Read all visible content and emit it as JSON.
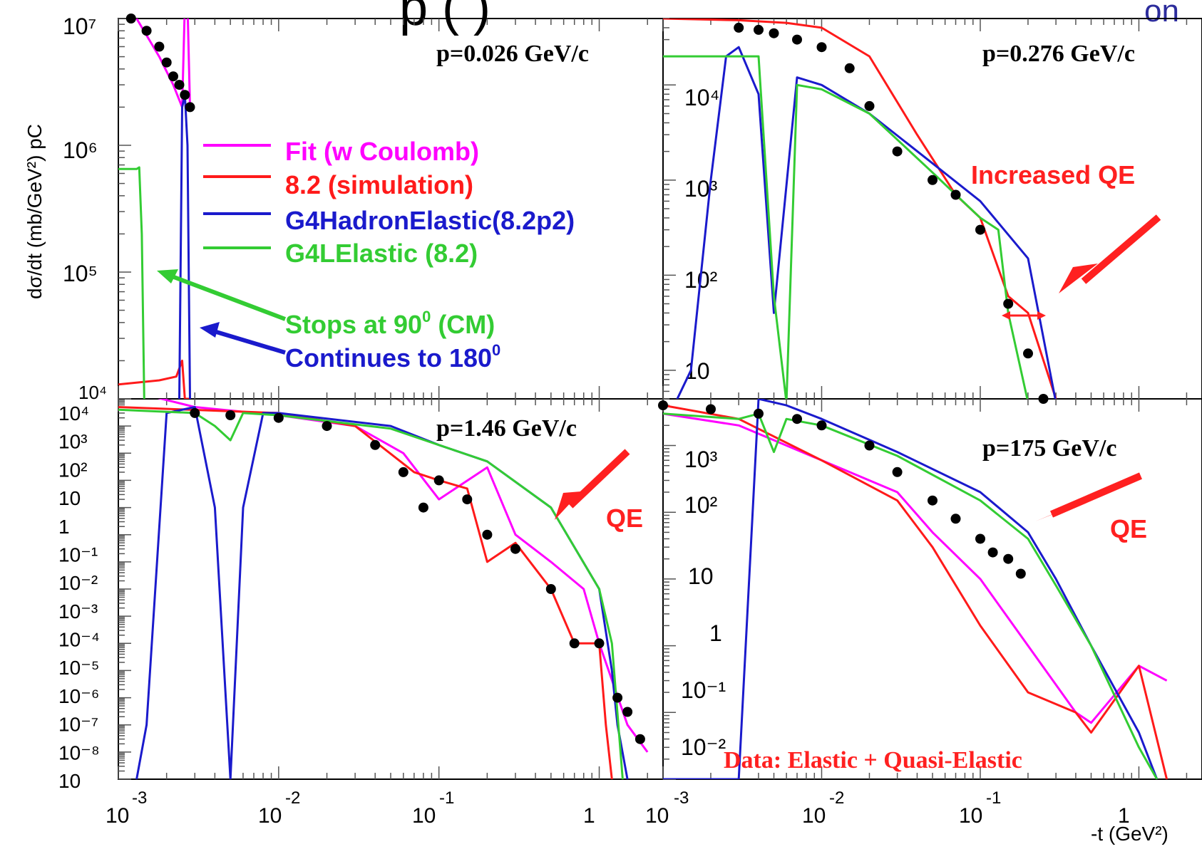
{
  "header": {
    "top_title_fragment": "p  (  )",
    "top_right_fragment": "on"
  },
  "colors": {
    "fit": "#ff00ff",
    "sim": "#ff1a1a",
    "hadron": "#1a1acc",
    "lelastic": "#33cc33",
    "annotation_red": "#ff2020",
    "data": "#000000"
  },
  "ylabel": "dσ/dt (mb/GeV²) pC",
  "xlabel": "-t (GeV²)",
  "legend": {
    "items": [
      {
        "label": "Fit (w Coulomb)",
        "color": "#ff00ff"
      },
      {
        "label": "8.2 (simulation)",
        "color": "#ff1a1a"
      },
      {
        "label": "G4HadronElastic(8.2p2)",
        "color": "#1a1acc"
      },
      {
        "label": "G4LElastic (8.2)",
        "color": "#33cc33"
      }
    ]
  },
  "annotations": {
    "stops": "Stops at 90",
    "stops_suffix": " (CM)",
    "continues": "Continues to 180",
    "degree": "0",
    "increased_qe": "Increased QE",
    "qe": "QE",
    "data_note": "Data: Elastic + Quasi-Elastic"
  },
  "chart_data": [
    {
      "type": "line",
      "panel": "top-left",
      "title": "p=0.026 GeV/c",
      "y_tick_labels": [
        "10⁷",
        "10⁶",
        "10⁵",
        "10⁴"
      ],
      "x_scale": "log",
      "y_scale": "log",
      "series": [
        {
          "name": "Fit (w Coulomb)",
          "x": [
            0.0013,
            0.0018,
            0.0022,
            0.0025,
            0.0026,
            0.0027,
            0.0028
          ],
          "y": [
            10000000.0,
            5000000.0,
            3000000.0,
            2000000.0,
            100000000.0,
            100000000.0,
            2000000.0
          ]
        },
        {
          "name": "8.2 (simulation)",
          "x": [
            0.001,
            0.0018,
            0.0023,
            0.0025,
            0.0026,
            0.0028
          ],
          "y": [
            13000,
            14000,
            15000,
            20000,
            10000,
            10000
          ]
        },
        {
          "name": "G4HadronElastic(8.2p2)",
          "x": [
            0.0024,
            0.0025,
            0.0026,
            0.0027,
            0.0028
          ],
          "y": [
            10000,
            2000000,
            2500000,
            1000000,
            10000
          ]
        },
        {
          "name": "G4LElastic (8.2)",
          "x": [
            0.001,
            0.0013,
            0.00135,
            0.0014,
            0.00145
          ],
          "y": [
            650000,
            650000,
            670000,
            200000,
            10000
          ]
        }
      ],
      "data_points": {
        "x": [
          0.0012,
          0.0015,
          0.0018,
          0.002,
          0.0022,
          0.0024,
          0.0026,
          0.0028
        ],
        "y": [
          10000000,
          8000000,
          6000000,
          4500000,
          3500000,
          3000000,
          2500000,
          2000000
        ]
      }
    },
    {
      "type": "line",
      "panel": "top-right",
      "title": "p=0.276 GeV/c",
      "y_tick_labels": [
        "10⁴",
        "10³",
        "10²",
        "10"
      ],
      "x_scale": "log",
      "y_scale": "log",
      "series": [
        {
          "name": "8.2 (simulation)",
          "x": [
            0.001,
            0.003,
            0.006,
            0.01,
            0.02,
            0.04,
            0.07,
            0.1,
            0.15,
            0.2,
            0.3
          ],
          "y": [
            50000,
            48000,
            45000,
            40000,
            20000,
            3000,
            700,
            400,
            60,
            40,
            5
          ]
        },
        {
          "name": "G4HadronElastic(8.2p2)",
          "x": [
            0.0012,
            0.0015,
            0.002,
            0.0025,
            0.003,
            0.004,
            0.005,
            0.007,
            0.01,
            0.02,
            0.05,
            0.1,
            0.2,
            0.3
          ],
          "y": [
            1,
            10,
            1000,
            20000,
            25000,
            8000,
            40,
            12000,
            10000,
            5000,
            1500,
            600,
            150,
            1
          ]
        },
        {
          "name": "G4LElastic (8.2)",
          "x": [
            0.001,
            0.003,
            0.004,
            0.005,
            0.006,
            0.007,
            0.01,
            0.02,
            0.05,
            0.1,
            0.13,
            0.15,
            0.2,
            0.25
          ],
          "y": [
            20000,
            20000,
            20000,
            60,
            1,
            10000,
            9000,
            5000,
            1200,
            400,
            300,
            40,
            1,
            1
          ]
        }
      ],
      "data_points": {
        "x": [
          0.003,
          0.004,
          0.005,
          0.007,
          0.01,
          0.015,
          0.02,
          0.03,
          0.05,
          0.07,
          0.1,
          0.15,
          0.2,
          0.25
        ],
        "y": [
          40000,
          38000,
          35000,
          30000,
          25000,
          15000,
          6000,
          2000,
          1000,
          700,
          300,
          50,
          15,
          5
        ]
      }
    },
    {
      "type": "line",
      "panel": "bottom-left",
      "title": "p=1.46 GeV/c",
      "y_tick_labels": [
        "10⁴",
        "10³",
        "10²",
        "10",
        "1",
        "10⁻¹",
        "10⁻²",
        "10⁻³",
        "10⁻⁴",
        "10⁻⁵",
        "10⁻⁶",
        "10⁻⁷",
        "10⁻⁸",
        "10"
      ],
      "x_scale": "log",
      "y_scale": "log",
      "series": [
        {
          "name": "Fit (w Coulomb)",
          "x": [
            0.001,
            0.003,
            0.01,
            0.03,
            0.06,
            0.1,
            0.2,
            0.3,
            0.5,
            0.8,
            1.0,
            1.5,
            2.0
          ],
          "y": [
            25000,
            5000,
            2500,
            1000,
            100,
            2,
            30,
            0.1,
            0.01,
            0.001,
            1e-05,
            1e-08,
            1e-09
          ]
        },
        {
          "name": "8.2 (simulation)",
          "x": [
            0.001,
            0.01,
            0.03,
            0.07,
            0.1,
            0.15,
            0.2,
            0.3,
            0.5,
            0.7,
            1.0,
            1.1,
            1.2
          ],
          "y": [
            5000,
            3000,
            1000,
            20,
            10,
            5,
            0.01,
            0.05,
            0.001,
            1e-05,
            1e-05,
            1e-08,
            1e-10
          ]
        },
        {
          "name": "G4HadronElastic(8.2p2)",
          "x": [
            0.0013,
            0.0015,
            0.002,
            0.003,
            0.004,
            0.005,
            0.006,
            0.008,
            0.01,
            0.05,
            0.1,
            0.2,
            0.5,
            1.0,
            1.2,
            1.3,
            1.5
          ],
          "y": [
            1e-10,
            1e-08,
            3000,
            5000,
            1,
            1e-10,
            1,
            3000,
            3000,
            1000,
            200,
            50,
            1,
            0.001,
            1e-06,
            1e-08,
            1e-10
          ]
        },
        {
          "name": "G4LElastic (8.2)",
          "x": [
            0.001,
            0.003,
            0.004,
            0.005,
            0.006,
            0.01,
            0.05,
            0.1,
            0.2,
            0.5,
            1.0,
            1.2,
            1.4
          ],
          "y": [
            4000,
            3000,
            1000,
            300,
            3000,
            2500,
            800,
            200,
            50,
            1,
            0.001,
            1e-05,
            1e-10
          ]
        }
      ],
      "data_points": {
        "x": [
          0.003,
          0.005,
          0.01,
          0.02,
          0.04,
          0.06,
          0.08,
          0.1,
          0.15,
          0.2,
          0.3,
          0.5,
          0.7,
          1.0,
          1.3,
          1.5,
          1.8
        ],
        "y": [
          3000,
          2500,
          2000,
          1000,
          200,
          20,
          1,
          10,
          2,
          0.1,
          0.03,
          0.001,
          1e-05,
          1e-05,
          1e-07,
          3e-08,
          3e-09
        ]
      }
    },
    {
      "type": "line",
      "panel": "bottom-right",
      "title": "p=175 GeV/c",
      "y_tick_labels": [
        "10³",
        "10²",
        "10",
        "1",
        "10⁻¹",
        "10⁻²"
      ],
      "x_scale": "log",
      "y_scale": "log",
      "series": [
        {
          "name": "Fit (w Coulomb)",
          "x": [
            0.001,
            0.003,
            0.01,
            0.03,
            0.05,
            0.1,
            0.2,
            0.4,
            0.5,
            1.0,
            1.5
          ],
          "y": [
            3000,
            2000,
            600,
            200,
            50,
            10,
            1,
            0.1,
            0.07,
            0.5,
            0.3
          ]
        },
        {
          "name": "8.2 (simulation)",
          "x": [
            0.001,
            0.003,
            0.01,
            0.03,
            0.05,
            0.1,
            0.2,
            0.4,
            0.5,
            1.0,
            1.5
          ],
          "y": [
            4000,
            2500,
            600,
            150,
            30,
            2,
            0.2,
            0.1,
            0.05,
            0.5,
            0.01
          ]
        },
        {
          "name": "G4HadronElastic(8.2p2)",
          "x": [
            0.001,
            0.002,
            0.003,
            0.004,
            0.006,
            0.01,
            0.03,
            0.1,
            0.2,
            0.3,
            0.5,
            1.0,
            1.3
          ],
          "y": [
            0.01,
            0.01,
            0.01,
            5000,
            4000,
            2500,
            800,
            200,
            50,
            10,
            1,
            0.05,
            0.01
          ]
        },
        {
          "name": "G4LElastic (8.2)",
          "x": [
            0.001,
            0.003,
            0.004,
            0.005,
            0.006,
            0.01,
            0.03,
            0.1,
            0.2,
            0.3,
            0.5,
            1.0,
            1.3
          ],
          "y": [
            3000,
            2500,
            3000,
            800,
            2500,
            2000,
            700,
            150,
            40,
            8,
            1,
            0.03,
            0.01
          ]
        }
      ],
      "data_points": {
        "x": [
          0.001,
          0.002,
          0.004,
          0.007,
          0.01,
          0.02,
          0.03,
          0.05,
          0.07,
          0.1,
          0.12,
          0.15,
          0.18
        ],
        "y": [
          4000,
          3500,
          3000,
          2500,
          2000,
          1000,
          400,
          150,
          80,
          40,
          25,
          20,
          12
        ]
      }
    }
  ]
}
